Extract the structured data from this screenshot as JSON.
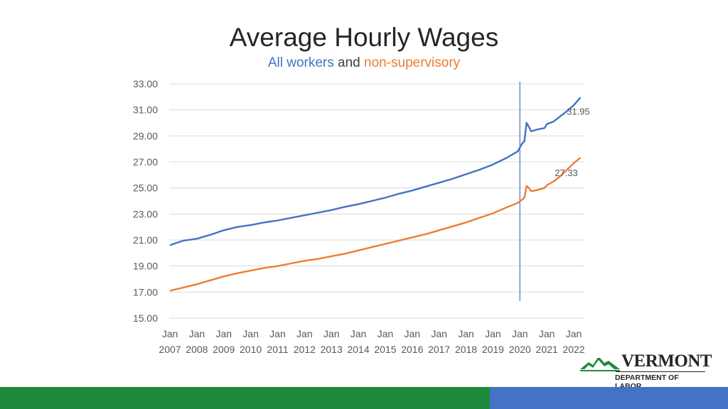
{
  "title": "Average Hourly Wages",
  "subtitle": {
    "part1": "All workers",
    "part2": " and ",
    "part3": "non-supervisory"
  },
  "logo": {
    "name": "VERMONT",
    "department": "DEPARTMENT OF LABOR"
  },
  "colors": {
    "all_workers": "#4472c4",
    "non_supervisory": "#ed7d31",
    "band_green": "#1e8a3c",
    "band_blue": "#4472c4"
  },
  "chart_data": {
    "type": "line",
    "title": "",
    "xlabel": "",
    "ylabel": "",
    "ylim": [
      15,
      33
    ],
    "yticks": [
      "33.00",
      "31.00",
      "29.00",
      "27.00",
      "25.00",
      "23.00",
      "21.00",
      "19.00",
      "17.00",
      "15.00"
    ],
    "xticks": [
      {
        "top": "Jan",
        "bottom": "2007"
      },
      {
        "top": "Jan",
        "bottom": "2008"
      },
      {
        "top": "Jan",
        "bottom": "2009"
      },
      {
        "top": "Jan",
        "bottom": "2010"
      },
      {
        "top": "Jan",
        "bottom": "2011"
      },
      {
        "top": "Jan",
        "bottom": "2012"
      },
      {
        "top": "Jan",
        "bottom": "2013"
      },
      {
        "top": "Jan",
        "bottom": "2014"
      },
      {
        "top": "Jan",
        "bottom": "2015"
      },
      {
        "top": "Jan",
        "bottom": "2016"
      },
      {
        "top": "Jan",
        "bottom": "2017"
      },
      {
        "top": "Jan",
        "bottom": "2018"
      },
      {
        "top": "Jan",
        "bottom": "2019"
      },
      {
        "top": "Jan",
        "bottom": "2020"
      },
      {
        "top": "Jan",
        "bottom": "2021"
      },
      {
        "top": "Jan",
        "bottom": "2022"
      }
    ],
    "grid": true,
    "vertical_marker": "Jan 2020",
    "series": [
      {
        "name": "All workers",
        "end_label": "31.95",
        "points": [
          [
            "2007-01",
            20.6
          ],
          [
            "2007-07",
            20.95
          ],
          [
            "2008-01",
            21.1
          ],
          [
            "2008-07",
            21.4
          ],
          [
            "2009-01",
            21.75
          ],
          [
            "2009-07",
            22.0
          ],
          [
            "2010-01",
            22.15
          ],
          [
            "2010-07",
            22.35
          ],
          [
            "2011-01",
            22.5
          ],
          [
            "2011-07",
            22.7
          ],
          [
            "2012-01",
            22.9
          ],
          [
            "2012-07",
            23.1
          ],
          [
            "2013-01",
            23.3
          ],
          [
            "2013-07",
            23.55
          ],
          [
            "2014-01",
            23.75
          ],
          [
            "2014-07",
            24.0
          ],
          [
            "2015-01",
            24.25
          ],
          [
            "2015-07",
            24.55
          ],
          [
            "2016-01",
            24.8
          ],
          [
            "2016-07",
            25.1
          ],
          [
            "2017-01",
            25.4
          ],
          [
            "2017-07",
            25.7
          ],
          [
            "2018-01",
            26.05
          ],
          [
            "2018-07",
            26.4
          ],
          [
            "2019-01",
            26.8
          ],
          [
            "2019-07",
            27.3
          ],
          [
            "2019-12",
            27.8
          ],
          [
            "2020-02",
            28.4
          ],
          [
            "2020-03",
            28.6
          ],
          [
            "2020-04",
            30.0
          ],
          [
            "2020-05",
            29.7
          ],
          [
            "2020-06",
            29.35
          ],
          [
            "2020-09",
            29.5
          ],
          [
            "2020-12",
            29.6
          ],
          [
            "2021-01",
            29.9
          ],
          [
            "2021-04",
            30.1
          ],
          [
            "2021-07",
            30.5
          ],
          [
            "2021-10",
            30.9
          ],
          [
            "2022-01",
            31.35
          ],
          [
            "2022-04",
            31.95
          ]
        ]
      },
      {
        "name": "non-supervisory",
        "end_label": "27.33",
        "points": [
          [
            "2007-01",
            17.1
          ],
          [
            "2007-07",
            17.35
          ],
          [
            "2008-01",
            17.6
          ],
          [
            "2008-07",
            17.9
          ],
          [
            "2009-01",
            18.2
          ],
          [
            "2009-07",
            18.45
          ],
          [
            "2010-01",
            18.65
          ],
          [
            "2010-07",
            18.85
          ],
          [
            "2011-01",
            19.0
          ],
          [
            "2011-07",
            19.2
          ],
          [
            "2012-01",
            19.4
          ],
          [
            "2012-07",
            19.55
          ],
          [
            "2013-01",
            19.75
          ],
          [
            "2013-07",
            19.95
          ],
          [
            "2014-01",
            20.2
          ],
          [
            "2014-07",
            20.45
          ],
          [
            "2015-01",
            20.7
          ],
          [
            "2015-07",
            20.95
          ],
          [
            "2016-01",
            21.2
          ],
          [
            "2016-07",
            21.45
          ],
          [
            "2017-01",
            21.75
          ],
          [
            "2017-07",
            22.05
          ],
          [
            "2018-01",
            22.35
          ],
          [
            "2018-07",
            22.7
          ],
          [
            "2019-01",
            23.05
          ],
          [
            "2019-07",
            23.5
          ],
          [
            "2019-12",
            23.85
          ],
          [
            "2020-02",
            24.1
          ],
          [
            "2020-03",
            24.25
          ],
          [
            "2020-04",
            25.15
          ],
          [
            "2020-05",
            25.0
          ],
          [
            "2020-06",
            24.75
          ],
          [
            "2020-09",
            24.85
          ],
          [
            "2020-12",
            25.0
          ],
          [
            "2021-01",
            25.2
          ],
          [
            "2021-04",
            25.5
          ],
          [
            "2021-07",
            25.9
          ],
          [
            "2021-10",
            26.4
          ],
          [
            "2022-01",
            26.9
          ],
          [
            "2022-04",
            27.33
          ]
        ]
      }
    ]
  }
}
